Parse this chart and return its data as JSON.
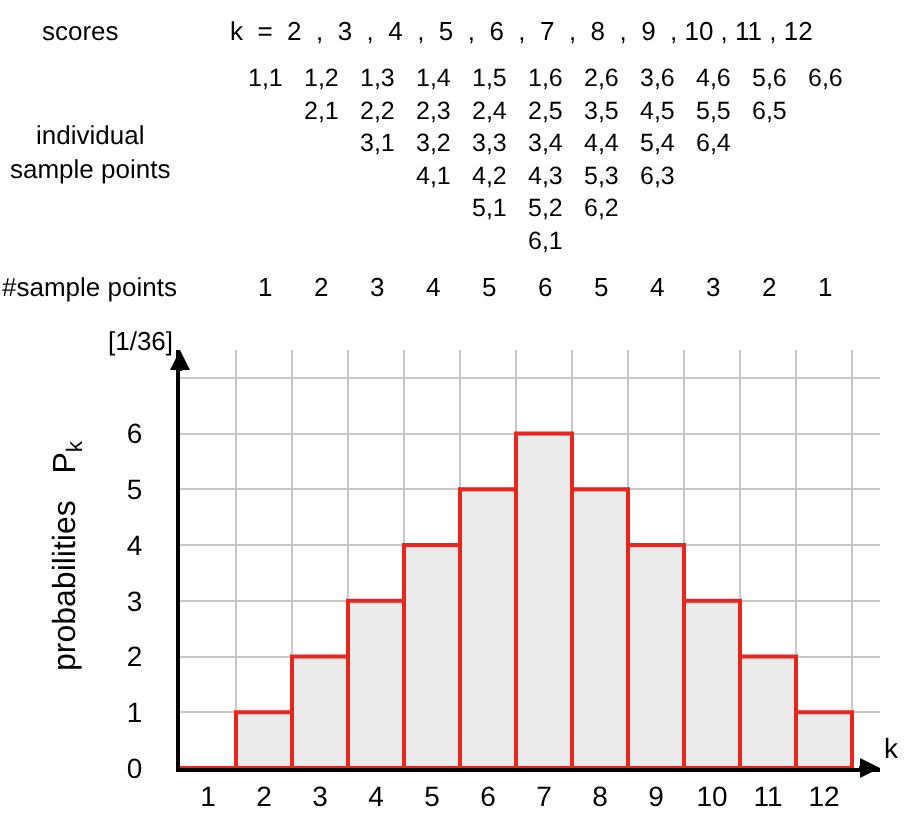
{
  "chart_data": {
    "type": "bar",
    "x": [
      1,
      2,
      3,
      4,
      5,
      6,
      7,
      8,
      9,
      10,
      11,
      12
    ],
    "values": [
      0,
      1,
      2,
      3,
      4,
      5,
      6,
      5,
      4,
      3,
      2,
      1
    ],
    "colors": [
      "#e8261e",
      "#ebebeb",
      "#ebebeb",
      "#ebebeb",
      "#ebebeb",
      "#ebebeb",
      "#ebebeb",
      "#ebebeb",
      "#ebebeb",
      "#ebebeb",
      "#ebebeb",
      "#ebebeb"
    ],
    "xlim": [
      0.5,
      13
    ],
    "xticks": [
      1,
      2,
      3,
      4,
      5,
      6,
      7,
      8,
      9,
      10,
      11,
      12
    ],
    "ylim": [
      0,
      7.5
    ],
    "yticks": [
      0,
      1,
      2,
      3,
      4,
      5,
      6,
      {
        "value": 7,
        "label": null
      }
    ],
    "grid": true,
    "xlabel": "k",
    "ylabel": "probabilities   P$_{k}$",
    "annotations": [
      "scores",
      "k  =  2  ,  3  ,  4  ,  5  ,  6  ,  7  ,  8  ,  9  , 10 , 11 , 12",
      "individual\nsample points",
      "#sample points",
      "[1/36]",
      "1,1",
      "1,2\n2,1",
      "1,3\n2,2\n3,1",
      "1,4\n2,3\n3,2\n4,1",
      "1,5\n2,4\n3,3\n4,2\n5,1",
      "1,6\n2,5\n3,4\n4,3\n5,2\n6,1",
      "2,6\n3,5\n4,4\n5,3\n6,2",
      "3,6\n4,5\n5,4\n6,3",
      "4,6\n5,5\n6,4",
      "5,6\n6,5",
      "6,6",
      "1",
      "2",
      "3",
      "4",
      "5",
      "6",
      "5",
      "4",
      "3",
      "2",
      "1"
    ]
  }
}
